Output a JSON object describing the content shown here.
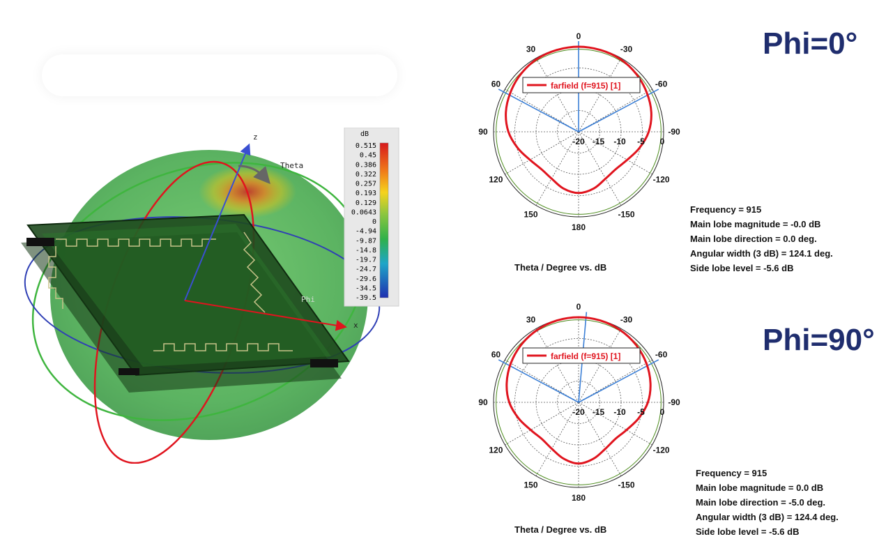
{
  "colorbar": {
    "unit": "dB",
    "values": [
      "0.515",
      "0.45",
      "0.386",
      "0.322",
      "0.257",
      "0.193",
      "0.129",
      "0.0643",
      "0",
      "-4.94",
      "-9.87",
      "-14.8",
      "-19.7",
      "-24.7",
      "-29.6",
      "-34.5",
      "-39.5"
    ]
  },
  "axes3d": {
    "z": "z",
    "x": "x",
    "theta": "Theta",
    "phi": "Phi"
  },
  "chart_data": [
    {
      "type": "polar",
      "title": "Phi=0°",
      "xlabel": "Theta / Degree vs. dB",
      "angle_ticks": [
        "0",
        "30",
        "60",
        "90",
        "120",
        "150",
        "180",
        "-150",
        "-120",
        "-90",
        "-60",
        "-30"
      ],
      "radial_ticks": [
        "-20",
        "-15",
        "-10",
        "-5",
        "0"
      ],
      "rlim": [
        -20,
        0
      ],
      "legend": "farfield (f=915) [1]",
      "series": [
        {
          "name": "farfield (f=915) [1]",
          "color": "#e0141e",
          "theta": [
            0,
            15,
            30,
            45,
            60,
            75,
            90,
            105,
            120,
            135,
            150,
            165,
            180,
            -165,
            -150,
            -135,
            -120,
            -105,
            -90,
            -75,
            -60,
            -45,
            -30,
            -15
          ],
          "values": [
            0,
            -0.1,
            -0.3,
            -0.8,
            -1.5,
            -2.3,
            -3.5,
            -5.2,
            -6.8,
            -7.6,
            -7.3,
            -6.2,
            -5.6,
            -6.2,
            -7.3,
            -7.6,
            -6.8,
            -5.2,
            -3.5,
            -2.3,
            -1.5,
            -0.8,
            -0.3,
            -0.1
          ]
        }
      ],
      "main_lobe_direction_deg": 0.0,
      "beamwidth_edges_deg": [
        62,
        -62
      ],
      "info": [
        "Frequency = 915",
        "Main lobe magnitude =  -0.0 dB",
        "Main lobe direction =   0.0 deg.",
        "Angular width (3 dB) = 124.1 deg.",
        "Side lobe level =  -5.6 dB"
      ]
    },
    {
      "type": "polar",
      "title": "Phi=90°",
      "xlabel": "Theta / Degree vs. dB",
      "angle_ticks": [
        "0",
        "30",
        "60",
        "90",
        "120",
        "150",
        "180",
        "-150",
        "-120",
        "-90",
        "-60",
        "-30"
      ],
      "radial_ticks": [
        "-20",
        "-15",
        "-10",
        "-5",
        "0"
      ],
      "rlim": [
        -20,
        0
      ],
      "legend": "farfield (f=915) [1]",
      "series": [
        {
          "name": "farfield (f=915) [1]",
          "color": "#e0141e",
          "theta": [
            0,
            15,
            30,
            45,
            60,
            75,
            90,
            105,
            120,
            135,
            150,
            165,
            180,
            -165,
            -150,
            -135,
            -120,
            -105,
            -90,
            -75,
            -60,
            -45,
            -30,
            -15
          ],
          "values": [
            0,
            -0.1,
            -0.4,
            -0.9,
            -1.6,
            -2.5,
            -3.7,
            -5.4,
            -7.0,
            -7.8,
            -7.4,
            -6.3,
            -5.6,
            -6.3,
            -7.4,
            -7.8,
            -7.0,
            -5.4,
            -3.7,
            -2.5,
            -1.6,
            -0.9,
            -0.4,
            -0.1
          ]
        }
      ],
      "main_lobe_direction_deg": -5.0,
      "beamwidth_edges_deg": [
        62,
        -62
      ],
      "info": [
        "Frequency = 915",
        "Main lobe magnitude =  0.0 dB",
        "Main lobe direction =  -5.0 deg.",
        "Angular width (3 dB) =  124.4 deg.",
        "Side lobe level =  -5.6 dB"
      ]
    }
  ]
}
